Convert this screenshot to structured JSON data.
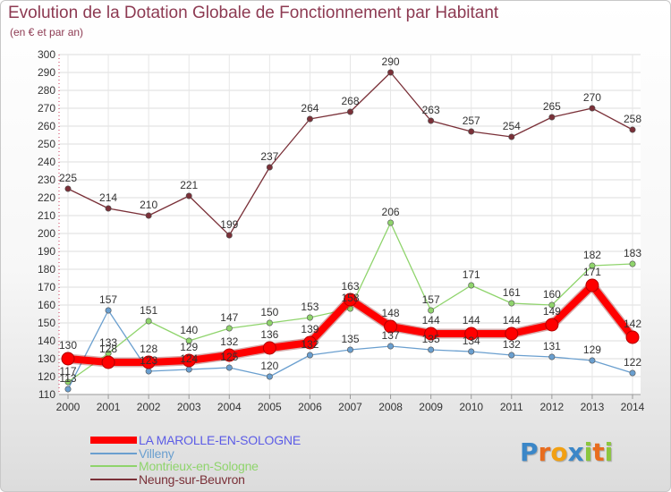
{
  "title": "Evolution de la Dotation Globale de Fonctionnement par Habitant",
  "subtitle": "(en € et par an)",
  "logo": {
    "letters": [
      {
        "ch": "P",
        "color": "#3b87c8"
      },
      {
        "ch": "r",
        "color": "#e86d1f"
      },
      {
        "ch": "o",
        "color": "#f2a012"
      },
      {
        "ch": "x",
        "color": "#3b87c8"
      },
      {
        "ch": "i",
        "color": "#8cc63e"
      },
      {
        "ch": "t",
        "color": "#e86d1f"
      },
      {
        "ch": "i",
        "color": "#8cc63e"
      }
    ]
  },
  "chart_data": {
    "type": "line",
    "title": "Evolution de la Dotation Globale de Fonctionnement par Habitant",
    "subtitle": "(en € et par an)",
    "x": [
      2000,
      2001,
      2002,
      2003,
      2004,
      2005,
      2006,
      2007,
      2008,
      2009,
      2010,
      2011,
      2012,
      2013,
      2014
    ],
    "ylim": [
      110,
      300
    ],
    "yticks": [
      110,
      120,
      130,
      140,
      150,
      160,
      170,
      180,
      190,
      200,
      210,
      220,
      230,
      240,
      250,
      260,
      270,
      280,
      290,
      300
    ],
    "grid": true,
    "legend_position": "bottom-left",
    "series": [
      {
        "name": "LA MAROLLE-EN-SOLOGNE",
        "color": "#ff0000",
        "emphasis": true,
        "values": [
          130,
          128,
          128,
          129,
          132,
          136,
          139,
          163,
          148,
          144,
          144,
          144,
          149,
          171,
          142
        ]
      },
      {
        "name": "Villeny",
        "color": "#6a9fcf",
        "values": [
          113,
          157,
          123,
          124,
          125,
          120,
          132,
          135,
          137,
          135,
          134,
          132,
          131,
          129,
          122
        ]
      },
      {
        "name": "Montrieux-en-Sologne",
        "color": "#8fd46c",
        "values": [
          117,
          133,
          151,
          140,
          147,
          150,
          153,
          158,
          206,
          157,
          171,
          161,
          160,
          182,
          183
        ]
      },
      {
        "name": "Neung-sur-Beuvron",
        "color": "#7a3038",
        "values": [
          225,
          214,
          210,
          221,
          199,
          237,
          264,
          268,
          290,
          263,
          257,
          254,
          265,
          270,
          258
        ]
      }
    ]
  }
}
